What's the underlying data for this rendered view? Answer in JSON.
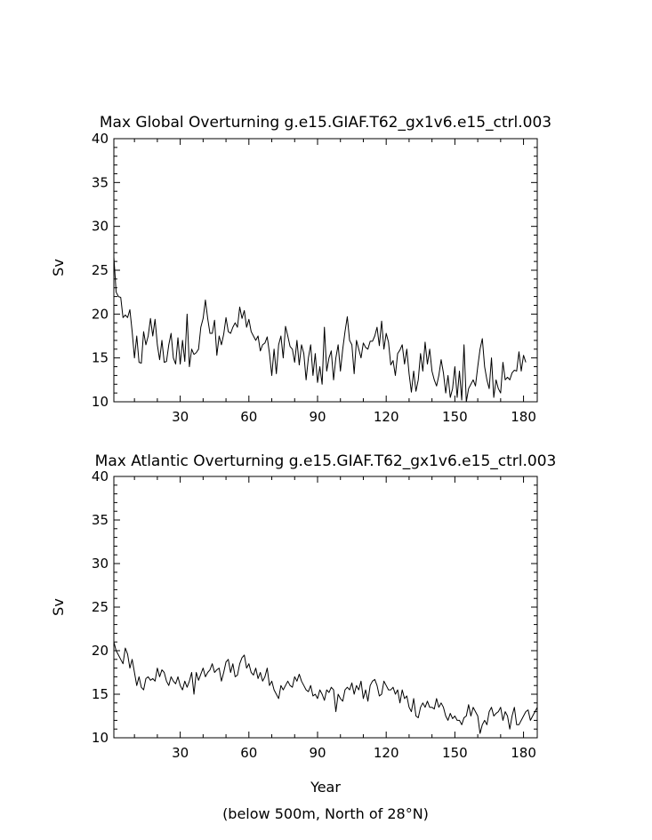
{
  "chart_data": [
    {
      "type": "line",
      "title": "Max Global Overturning g.e15.GIAF.T62_gx1v6.e15_ctrl.003",
      "ylabel": "Sv",
      "xlabel": "",
      "xlim": [
        1,
        186
      ],
      "ylim": [
        10,
        40
      ],
      "xticks": [
        "30",
        "60",
        "90",
        "120",
        "150",
        "180"
      ],
      "yticks": [
        "10",
        "15",
        "20",
        "25",
        "30",
        "35",
        "40"
      ],
      "grid": false,
      "series": [
        {
          "x_start": 1,
          "values": [
            26.5,
            22.5,
            22.0,
            21.9,
            19.6,
            19.9,
            19.6,
            20.5,
            18.0,
            15.0,
            17.5,
            14.5,
            14.4,
            18.0,
            16.5,
            17.5,
            19.5,
            17.5,
            19.4,
            16.5,
            14.8,
            17.0,
            14.5,
            14.6,
            16.5,
            17.8,
            15.0,
            14.3,
            17.3,
            14.3,
            17.0,
            14.6,
            20.0,
            14.0,
            16.0,
            15.4,
            15.6,
            16.0,
            18.5,
            19.5,
            21.6,
            19.5,
            17.8,
            17.8,
            19.3,
            15.3,
            17.5,
            16.5,
            17.7,
            19.6,
            18.0,
            17.8,
            18.5,
            19.0,
            18.5,
            20.8,
            19.5,
            20.4,
            18.5,
            19.4,
            18.0,
            17.5,
            17.0,
            17.5,
            15.8,
            16.5,
            16.7,
            17.4,
            15.5,
            13.0,
            16.0,
            13.2,
            16.5,
            17.5,
            15.0,
            18.6,
            17.5,
            16.3,
            16.0,
            14.5,
            17.0,
            14.2,
            16.5,
            15.5,
            12.5,
            15.0,
            16.5,
            13.0,
            15.5,
            12.2,
            14.0,
            12.0,
            18.5,
            13.5,
            15.0,
            15.8,
            12.5,
            15.0,
            16.5,
            13.5,
            16.0,
            18.0,
            19.7,
            17.0,
            16.5,
            13.2,
            17.0,
            16.0,
            15.0,
            16.7,
            16.2,
            16.0,
            16.9,
            16.9,
            17.5,
            18.5,
            16.4,
            19.2,
            16.0,
            17.8,
            16.8,
            14.2,
            14.7,
            13.0,
            15.5,
            15.9,
            16.5,
            14.3,
            16.0,
            13.2,
            11.1,
            13.5,
            11.2,
            12.5,
            15.5,
            13.5,
            16.8,
            14.3,
            16.0,
            13.5,
            12.5,
            11.8,
            13.0,
            14.8,
            13.3,
            11.0,
            13.0,
            10.5,
            11.5,
            14.0,
            10.5,
            13.5,
            10.2,
            16.5,
            10.0,
            11.5,
            12.0,
            12.5,
            11.8,
            14.0,
            16.0,
            17.2,
            14.0,
            12.5,
            11.5,
            15.0,
            10.5,
            12.5,
            11.5,
            11.0,
            14.5,
            12.5,
            12.8,
            12.5,
            13.3,
            13.6,
            13.5,
            15.7,
            13.5,
            15.3,
            14.5
          ]
        }
      ]
    },
    {
      "type": "line",
      "title": "Max Atlantic Overturning g.e15.GIAF.T62_gx1v6.e15_ctrl.003",
      "ylabel": "Sv",
      "xlabel": "Year",
      "xlim": [
        1,
        186
      ],
      "ylim": [
        10,
        40
      ],
      "xticks": [
        "30",
        "60",
        "90",
        "120",
        "150",
        "180"
      ],
      "yticks": [
        "10",
        "15",
        "20",
        "25",
        "30",
        "35",
        "40"
      ],
      "grid": false,
      "series": [
        {
          "x_start": 1,
          "values": [
            21.0,
            20.0,
            19.5,
            19.0,
            18.5,
            20.3,
            19.6,
            18.0,
            19.0,
            17.5,
            16.0,
            17.0,
            15.8,
            15.5,
            16.8,
            17.0,
            16.6,
            16.8,
            16.5,
            18.0,
            17.0,
            17.8,
            17.5,
            16.5,
            16.0,
            17.0,
            16.5,
            16.2,
            17.0,
            16.0,
            15.5,
            16.5,
            15.8,
            16.5,
            17.5,
            15.0,
            17.5,
            16.6,
            17.3,
            18.0,
            17.0,
            17.5,
            17.8,
            18.5,
            17.5,
            17.8,
            18.0,
            16.5,
            17.5,
            18.7,
            19.0,
            17.5,
            18.5,
            17.0,
            17.2,
            18.5,
            19.2,
            19.5,
            18.0,
            18.5,
            17.5,
            17.2,
            18.0,
            16.8,
            17.5,
            16.5,
            17.0,
            18.0,
            16.0,
            16.5,
            15.5,
            15.0,
            14.5,
            16.0,
            15.5,
            16.0,
            16.5,
            16.0,
            15.8,
            17.0,
            16.5,
            17.3,
            16.5,
            16.0,
            15.5,
            15.3,
            16.0,
            14.8,
            15.0,
            14.5,
            15.5,
            15.0,
            14.3,
            15.5,
            15.2,
            15.8,
            15.5,
            13.0,
            15.0,
            14.5,
            14.2,
            15.5,
            15.8,
            15.5,
            16.3,
            15.0,
            16.0,
            15.5,
            16.5,
            14.5,
            15.5,
            14.2,
            16.0,
            16.5,
            16.7,
            16.0,
            14.8,
            15.0,
            16.5,
            16.0,
            15.5,
            15.5,
            15.8,
            15.0,
            15.5,
            14.0,
            15.5,
            14.5,
            14.8,
            13.5,
            13.0,
            14.5,
            12.5,
            12.3,
            13.5,
            14.0,
            13.5,
            14.2,
            13.5,
            13.5,
            13.3,
            14.5,
            13.5,
            14.0,
            13.5,
            12.5,
            12.0,
            12.8,
            12.2,
            12.5,
            12.0,
            12.0,
            11.5,
            12.3,
            12.5,
            13.8,
            12.5,
            13.5,
            13.0,
            12.5,
            10.5,
            11.5,
            12.0,
            11.5,
            13.0,
            13.5,
            12.5,
            12.8,
            13.0,
            13.5,
            12.0,
            13.0,
            12.5,
            11.0,
            12.5,
            13.5,
            11.5,
            11.5,
            12.0,
            12.5,
            13.0,
            13.2,
            12.0,
            12.5,
            13.0,
            13.5
          ]
        }
      ]
    }
  ],
  "footnote": "(below 500m, North of 28°N)"
}
